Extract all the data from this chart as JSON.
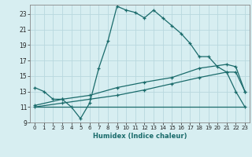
{
  "xlabel": "Humidex (Indice chaleur)",
  "bg_color": "#d7eef1",
  "grid_color": "#b8d8de",
  "line_color": "#1a6b6b",
  "xlim": [
    -0.5,
    23.5
  ],
  "ylim": [
    9,
    24.2
  ],
  "xticks": [
    0,
    1,
    2,
    3,
    4,
    5,
    6,
    7,
    8,
    9,
    10,
    11,
    12,
    13,
    14,
    15,
    16,
    17,
    18,
    19,
    20,
    21,
    22,
    23
  ],
  "yticks": [
    9,
    11,
    13,
    15,
    17,
    19,
    21,
    23
  ],
  "line1_x": [
    0,
    1,
    2,
    3,
    4,
    5,
    6,
    7,
    8,
    9,
    10,
    11,
    12,
    13,
    14,
    15,
    16,
    17,
    18,
    19,
    20,
    21,
    22,
    23
  ],
  "line1_y": [
    13.5,
    13.0,
    12.0,
    12.0,
    11.0,
    9.5,
    11.5,
    16.0,
    19.5,
    24.0,
    23.5,
    23.2,
    22.5,
    23.5,
    22.5,
    21.5,
    20.5,
    19.2,
    17.5,
    17.5,
    16.2,
    15.5,
    13.0,
    11.0
  ],
  "line2_x": [
    0,
    1,
    2,
    3,
    4,
    5,
    6,
    7,
    8,
    9,
    10,
    11,
    12,
    13,
    14,
    15,
    16,
    17,
    18,
    19,
    20,
    21,
    22,
    23
  ],
  "line2_y": [
    11.0,
    11.0,
    11.0,
    11.0,
    11.0,
    11.0,
    11.0,
    11.0,
    11.0,
    11.0,
    11.0,
    11.0,
    11.0,
    11.0,
    11.0,
    11.0,
    11.0,
    11.0,
    11.0,
    11.0,
    11.0,
    11.0,
    11.0,
    11.0
  ],
  "line3_x": [
    0,
    3,
    6,
    9,
    12,
    15,
    18,
    21,
    22,
    23
  ],
  "line3_y": [
    11.2,
    12.0,
    12.5,
    13.5,
    14.2,
    14.8,
    16.0,
    16.5,
    16.2,
    13.0
  ],
  "line4_x": [
    0,
    3,
    6,
    9,
    12,
    15,
    18,
    21,
    22,
    23
  ],
  "line4_y": [
    11.0,
    11.5,
    12.0,
    12.5,
    13.2,
    14.0,
    14.8,
    15.5,
    15.5,
    13.0
  ]
}
